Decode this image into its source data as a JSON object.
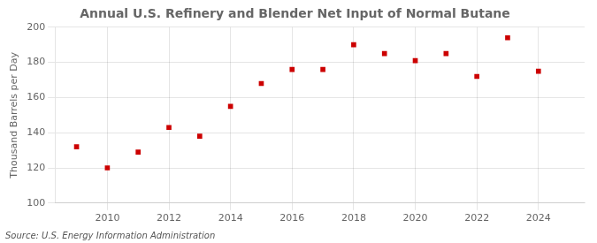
{
  "chart_data": {
    "type": "scatter",
    "title": "Annual U.S. Refinery and Blender Net Input of Normal Butane",
    "ylabel": "Thousand Barrels per Day",
    "annotations": [
      "Source: U.S. Energy Information Administration"
    ],
    "x": [
      2009,
      2010,
      2011,
      2012,
      2013,
      2014,
      2015,
      2016,
      2017,
      2018,
      2019,
      2020,
      2021,
      2022,
      2023,
      2024
    ],
    "values": [
      132,
      120,
      129,
      143,
      138,
      155,
      168,
      176,
      176,
      190,
      185,
      181,
      185,
      172,
      194,
      175
    ],
    "color": "#cc0000",
    "marker": "square",
    "xlim": [
      2008.3,
      2025.5
    ],
    "xticks": [
      2010,
      2012,
      2014,
      2016,
      2018,
      2020,
      2022,
      2024
    ],
    "ylim": [
      100,
      200
    ],
    "yticks": [
      100,
      120,
      140,
      160,
      180,
      200
    ],
    "grid": true
  }
}
